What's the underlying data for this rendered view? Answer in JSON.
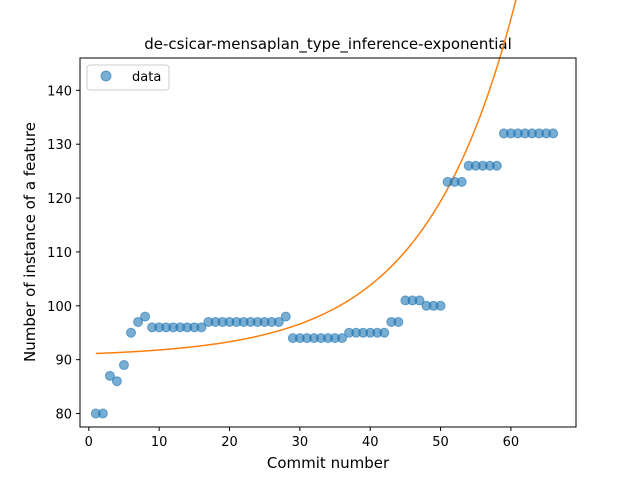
{
  "chart_data": {
    "type": "scatter",
    "title": "de-csicar-mensaplan_type_inference-exponential",
    "xlabel": "Commit number",
    "ylabel": "Number of instance of a feature",
    "xlim": [
      -1.25,
      69.25
    ],
    "ylim": [
      77.5,
      146
    ],
    "xticks": [
      0,
      10,
      20,
      30,
      40,
      50,
      60
    ],
    "yticks": [
      80,
      90,
      100,
      110,
      120,
      130,
      140
    ],
    "grid": false,
    "legend": {
      "position": "top-left",
      "entries": [
        "data"
      ]
    },
    "series": [
      {
        "name": "data",
        "kind": "scatter",
        "color": "#1f77b4",
        "x": [
          1,
          2,
          3,
          4,
          5,
          6,
          7,
          8,
          9,
          10,
          11,
          12,
          13,
          14,
          15,
          16,
          17,
          18,
          19,
          20,
          21,
          22,
          23,
          24,
          25,
          26,
          27,
          28,
          29,
          30,
          31,
          32,
          33,
          34,
          35,
          36,
          37,
          38,
          39,
          40,
          41,
          42,
          43,
          44,
          45,
          46,
          47,
          48,
          49,
          50,
          51,
          52,
          53,
          54,
          55,
          56,
          57,
          58,
          59,
          60,
          61,
          62,
          63,
          64,
          65,
          66
        ],
        "y": [
          80,
          80,
          87,
          86,
          89,
          95,
          97,
          98,
          96,
          96,
          96,
          96,
          96,
          96,
          96,
          96,
          97,
          97,
          97,
          97,
          97,
          97,
          97,
          97,
          97,
          97,
          97,
          98,
          94,
          94,
          94,
          94,
          94,
          94,
          94,
          94,
          95,
          95,
          95,
          95,
          95,
          95,
          97,
          97,
          101,
          101,
          101,
          100,
          100,
          100,
          123,
          123,
          123,
          126,
          126,
          126,
          126,
          126,
          132,
          132,
          132,
          132,
          132,
          132,
          132,
          132
        ]
      },
      {
        "name": "",
        "kind": "line",
        "color": "#ff7f0e",
        "model": {
          "form": "a*exp(b*x)+c",
          "a": 0.6,
          "b": 0.0775,
          "c": 90.5
        },
        "x_range": [
          1,
          66
        ]
      }
    ]
  }
}
